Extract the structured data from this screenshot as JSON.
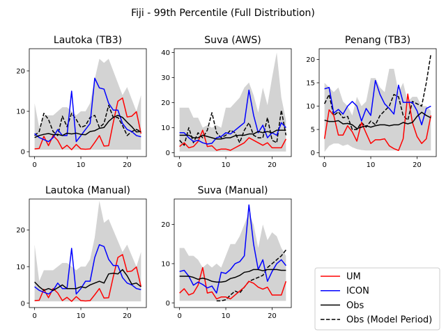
{
  "suptitle": "Fiji - 99th Percentile (Full Distribution)",
  "colors": {
    "um": "#ff0000",
    "icon": "#0000ff",
    "obs": "#000000",
    "band": "#d3d3d3"
  },
  "legend": [
    {
      "key": "um",
      "label": "UM",
      "style": "solid",
      "color": "#ff0000"
    },
    {
      "key": "icon",
      "label": "ICON",
      "style": "solid",
      "color": "#0000ff"
    },
    {
      "key": "obs",
      "label": "Obs",
      "style": "solid",
      "color": "#000000"
    },
    {
      "key": "obs_model",
      "label": "Obs (Model Period)",
      "style": "dashed",
      "color": "#000000"
    }
  ],
  "chart_data": [
    {
      "type": "line",
      "title": "Lautoka (TB3)",
      "xlim": [
        -1.15,
        24.15
      ],
      "ylim": [
        -1.2,
        25.5
      ],
      "xticks": [
        0,
        10,
        20
      ],
      "yticks": [
        0,
        10,
        20
      ],
      "x": [
        0,
        1,
        2,
        3,
        4,
        5,
        6,
        7,
        8,
        9,
        10,
        11,
        12,
        13,
        14,
        15,
        16,
        17,
        18,
        19,
        20,
        21,
        22,
        23
      ],
      "band_low": [
        0.5,
        0.5,
        0.5,
        0.5,
        0.5,
        0.5,
        0.5,
        0.5,
        0.5,
        0.5,
        0.5,
        0.5,
        0.5,
        0.5,
        0.5,
        0.5,
        0.5,
        0.5,
        0.5,
        0.5,
        0.5,
        0.5,
        0.5,
        0.5
      ],
      "band_high": [
        12,
        6,
        9,
        9,
        9,
        10,
        11,
        11,
        10,
        9,
        10,
        10,
        12,
        18,
        23,
        22,
        23,
        20,
        17,
        14,
        16,
        13,
        10,
        14
      ],
      "series": [
        {
          "key": "um",
          "values": [
            0.7,
            0.8,
            3.8,
            1.5,
            4,
            2.8,
            0.7,
            1.6,
            0.5,
            1.8,
            0.7,
            0.6,
            0.7,
            2.3,
            4,
            1.4,
            1.5,
            7.2,
            12.5,
            13.3,
            8.6,
            8.8,
            9.9,
            4.5
          ]
        },
        {
          "key": "icon",
          "values": [
            4.5,
            3.5,
            3,
            2.5,
            3.5,
            5.5,
            4,
            4,
            15,
            2.5,
            4,
            5.5,
            7,
            18.2,
            15.8,
            15.5,
            12,
            10.3,
            10.3,
            7,
            5.5,
            5,
            4,
            3.7
          ]
        },
        {
          "key": "obs",
          "values": [
            3.5,
            4,
            4.3,
            4.5,
            4.2,
            4.3,
            4,
            4.6,
            4.4,
            4.6,
            4.3,
            4.2,
            5,
            5.2,
            5.8,
            6,
            7.5,
            8.5,
            9,
            8.5,
            7.3,
            6.2,
            4.9,
            5
          ]
        },
        {
          "key": "obs_model",
          "values": [
            4,
            5,
            9.5,
            8,
            5,
            4,
            8.8,
            6.2,
            9.5,
            8,
            6,
            6.5,
            8.5,
            9,
            6,
            7,
            11.5,
            8.5,
            8.5,
            6.5,
            4,
            5,
            5.5,
            5
          ]
        }
      ]
    },
    {
      "type": "line",
      "title": "Suva (AWS)",
      "xlim": [
        -1.15,
        24.15
      ],
      "ylim": [
        -1.5,
        41.5
      ],
      "xticks": [
        0,
        10,
        20
      ],
      "yticks": [
        0,
        10,
        20,
        30,
        40
      ],
      "x": [
        0,
        1,
        2,
        3,
        4,
        5,
        6,
        7,
        8,
        9,
        10,
        11,
        12,
        13,
        14,
        15,
        16,
        17,
        18,
        19,
        20,
        21,
        22,
        23
      ],
      "band_low": [
        0.5,
        0.5,
        0.5,
        0.5,
        0.5,
        0.5,
        0.5,
        0.5,
        0.5,
        0.5,
        0.5,
        0.5,
        0.5,
        0.5,
        0.5,
        0.5,
        0.5,
        0.5,
        0.5,
        0.5,
        0.5,
        0.5,
        0.5,
        0.5
      ],
      "band_high": [
        18,
        18,
        18,
        14,
        14,
        10,
        11,
        10,
        11,
        10,
        18,
        18,
        20,
        22,
        26,
        28,
        23,
        16,
        26,
        19,
        30,
        40,
        22,
        13
      ],
      "series": [
        {
          "key": "um",
          "values": [
            2.5,
            4,
            2,
            2.5,
            4.5,
            9,
            2.5,
            2.8,
            1,
            1.5,
            1.5,
            1,
            2,
            3,
            4,
            6,
            5,
            4,
            3,
            4,
            2,
            2,
            2,
            5.5
          ]
        },
        {
          "key": "icon",
          "values": [
            8,
            8,
            6,
            4.5,
            5,
            4,
            3.5,
            3.8,
            6,
            6.5,
            8,
            7.5,
            9,
            10.5,
            12,
            25,
            15,
            8,
            11,
            6,
            8,
            7,
            12,
            10
          ]
        },
        {
          "key": "obs",
          "values": [
            7,
            7,
            7,
            6,
            6,
            7,
            6.5,
            6,
            5.5,
            5.5,
            6,
            6,
            6.8,
            7,
            7,
            7.5,
            7.5,
            8.5,
            8,
            8.5,
            8,
            9,
            9,
            9
          ]
        },
        {
          "key": "obs_model",
          "values": [
            5,
            3,
            10,
            4,
            8,
            6,
            9,
            16,
            8,
            6,
            7,
            9,
            8,
            4,
            9,
            12,
            7,
            6,
            6,
            14,
            5,
            4,
            17,
            7
          ]
        }
      ]
    },
    {
      "type": "line",
      "title": "Penang (TB3)",
      "xlim": [
        -1.15,
        24.15
      ],
      "ylim": [
        -0.8,
        22.3
      ],
      "xticks": [
        0,
        10,
        20
      ],
      "yticks": [
        0,
        5,
        10,
        15,
        20
      ],
      "x": [
        0,
        1,
        2,
        3,
        4,
        5,
        6,
        7,
        8,
        9,
        10,
        11,
        12,
        13,
        14,
        15,
        16,
        17,
        18,
        19,
        20,
        21,
        22,
        23
      ],
      "band_low": [
        0.2,
        1.5,
        2,
        2,
        1.5,
        1.8,
        1.2,
        0.8,
        0.6,
        0.5,
        0.5,
        0.5,
        0.5,
        0.5,
        0.5,
        0.5,
        0.5,
        0.5,
        0.5,
        0.5,
        0.5,
        0.5,
        0.5,
        0.5
      ],
      "band_high": [
        15,
        14,
        13,
        14,
        11,
        10,
        8,
        12,
        10,
        11,
        16,
        16,
        14,
        13,
        18,
        18,
        13,
        15,
        11,
        12,
        12,
        10,
        10,
        9
      ],
      "series": [
        {
          "key": "um",
          "values": [
            3,
            9.2,
            8,
            3.8,
            3.8,
            5.8,
            4.5,
            2.5,
            6.5,
            4.2,
            2,
            2.8,
            2.8,
            3,
            1.5,
            0.9,
            0.5,
            3,
            12.6,
            6.5,
            3.5,
            2,
            3,
            8
          ]
        },
        {
          "key": "icon",
          "values": [
            13.7,
            14,
            8.5,
            9.3,
            8.3,
            10,
            11,
            10,
            6.8,
            9.5,
            8,
            15.5,
            12.5,
            10.5,
            9.5,
            8.3,
            14.5,
            10.8,
            10.8,
            10.8,
            9,
            6,
            9.5,
            10
          ]
        },
        {
          "key": "obs",
          "values": [
            7,
            6.7,
            6.7,
            6.9,
            6.2,
            6.3,
            6,
            5.2,
            5.5,
            5.8,
            5.5,
            5.8,
            6,
            6,
            5.8,
            6,
            6,
            6.5,
            6.2,
            6.5,
            7.8,
            8.7,
            8,
            7.5
          ]
        },
        {
          "key": "obs_model",
          "values": [
            10.5,
            12.5,
            8,
            8.8,
            7.5,
            7.8,
            5,
            5,
            6.5,
            5.5,
            6.8,
            6,
            8,
            9,
            10,
            12.5,
            12,
            8,
            7,
            11,
            10.5,
            10,
            15,
            21.2
          ]
        }
      ]
    },
    {
      "type": "line",
      "title": "Lautoka (Manual)",
      "xlim": [
        -1.15,
        24.15
      ],
      "ylim": [
        -1.2,
        28.5
      ],
      "xticks": [
        0,
        10,
        20
      ],
      "yticks": [
        0,
        10,
        20
      ],
      "x": [
        0,
        1,
        2,
        3,
        4,
        5,
        6,
        7,
        8,
        9,
        10,
        11,
        12,
        13,
        14,
        15,
        16,
        17,
        18,
        19,
        20,
        21,
        22,
        23
      ],
      "band_low": [
        0.5,
        0.5,
        0.5,
        0.5,
        0.5,
        0.5,
        0.5,
        0.5,
        0.5,
        0.5,
        0.5,
        0.5,
        0.5,
        0.5,
        0.5,
        0.5,
        0.5,
        0.5,
        0.5,
        0.5,
        0.5,
        0.5,
        0.5,
        0.5
      ],
      "band_high": [
        16,
        6,
        9,
        9,
        9,
        10,
        11,
        11,
        10,
        9,
        10,
        10,
        12,
        18,
        28,
        22,
        23,
        20,
        17,
        14,
        16,
        13,
        10,
        14
      ],
      "series": [
        {
          "key": "um",
          "values": [
            0.7,
            0.8,
            3.8,
            1.5,
            4,
            2.8,
            0.7,
            1.6,
            0.5,
            1.8,
            0.7,
            0.6,
            0.7,
            2.3,
            4,
            1.4,
            1.5,
            7.2,
            12.5,
            13.3,
            8.6,
            8.8,
            9.9,
            4.5
          ]
        },
        {
          "key": "icon",
          "values": [
            4.5,
            3.5,
            3,
            2.5,
            3.5,
            5.5,
            4,
            4,
            15,
            2.5,
            4,
            6,
            6,
            12.5,
            16,
            15.5,
            12,
            10.3,
            10.3,
            7,
            5.5,
            5,
            4,
            3.7
          ]
        },
        {
          "key": "obs",
          "values": [
            5.8,
            4.5,
            3.5,
            4,
            3.5,
            4.2,
            5,
            4,
            4,
            4,
            4.5,
            4.2,
            5,
            5.5,
            6,
            5.5,
            8,
            8.2,
            8,
            9.2,
            7.5,
            5.2,
            5.5,
            4.5
          ]
        }
      ]
    },
    {
      "type": "line",
      "title": "Suva (Manual)",
      "xlim": [
        -1.15,
        24.15
      ],
      "ylim": [
        -1.2,
        26.5
      ],
      "xticks": [
        0,
        10,
        20
      ],
      "yticks": [
        0,
        10,
        20
      ],
      "x": [
        0,
        1,
        2,
        3,
        4,
        5,
        6,
        7,
        8,
        9,
        10,
        11,
        12,
        13,
        14,
        15,
        16,
        17,
        18,
        19,
        20,
        21,
        22,
        23
      ],
      "band_low": [
        0.5,
        0.5,
        0.5,
        0.5,
        0.5,
        0.5,
        0.5,
        0.5,
        0.5,
        0.5,
        0.5,
        0.5,
        0.5,
        0.5,
        0.5,
        0.5,
        0.5,
        0.5,
        0.5,
        0.5,
        0.5,
        0.5,
        0.5,
        0.5
      ],
      "band_high": [
        14,
        14,
        12,
        12,
        11,
        9,
        10,
        9,
        10,
        9,
        12,
        15,
        15,
        17,
        20,
        23,
        20,
        14,
        20,
        16,
        18,
        17,
        14,
        12
      ],
      "series": [
        {
          "key": "um",
          "values": [
            2.5,
            3.6,
            2,
            2.5,
            4.5,
            9,
            2.5,
            2.8,
            1,
            1.5,
            1.5,
            1,
            2,
            3,
            4,
            5.5,
            5,
            4,
            3.5,
            4,
            2,
            2,
            2,
            5.5
          ]
        },
        {
          "key": "icon",
          "values": [
            8,
            8.3,
            6.8,
            4.5,
            5.3,
            4.7,
            3.8,
            4.3,
            2.5,
            7.8,
            7.5,
            8.5,
            10,
            10.5,
            12,
            25,
            15,
            8.5,
            11,
            5.5,
            8,
            10,
            11,
            9.5
          ]
        },
        {
          "key": "obs",
          "values": [
            6.8,
            6.8,
            6.8,
            6.5,
            6,
            6.3,
            6,
            5.5,
            5.3,
            5.3,
            5.5,
            6.2,
            6.5,
            7,
            7.8,
            8,
            8.5,
            8.5,
            8.2,
            8.5,
            8.5,
            8.5,
            8.3,
            8.3
          ]
        },
        {
          "key": "obs_model",
          "values": [
            null,
            null,
            null,
            null,
            null,
            null,
            null,
            null,
            0.5,
            0.5,
            0.8,
            2,
            3,
            2.5,
            4,
            5.5,
            6,
            6.5,
            7,
            9,
            10,
            11,
            12,
            13.5
          ]
        }
      ]
    }
  ]
}
